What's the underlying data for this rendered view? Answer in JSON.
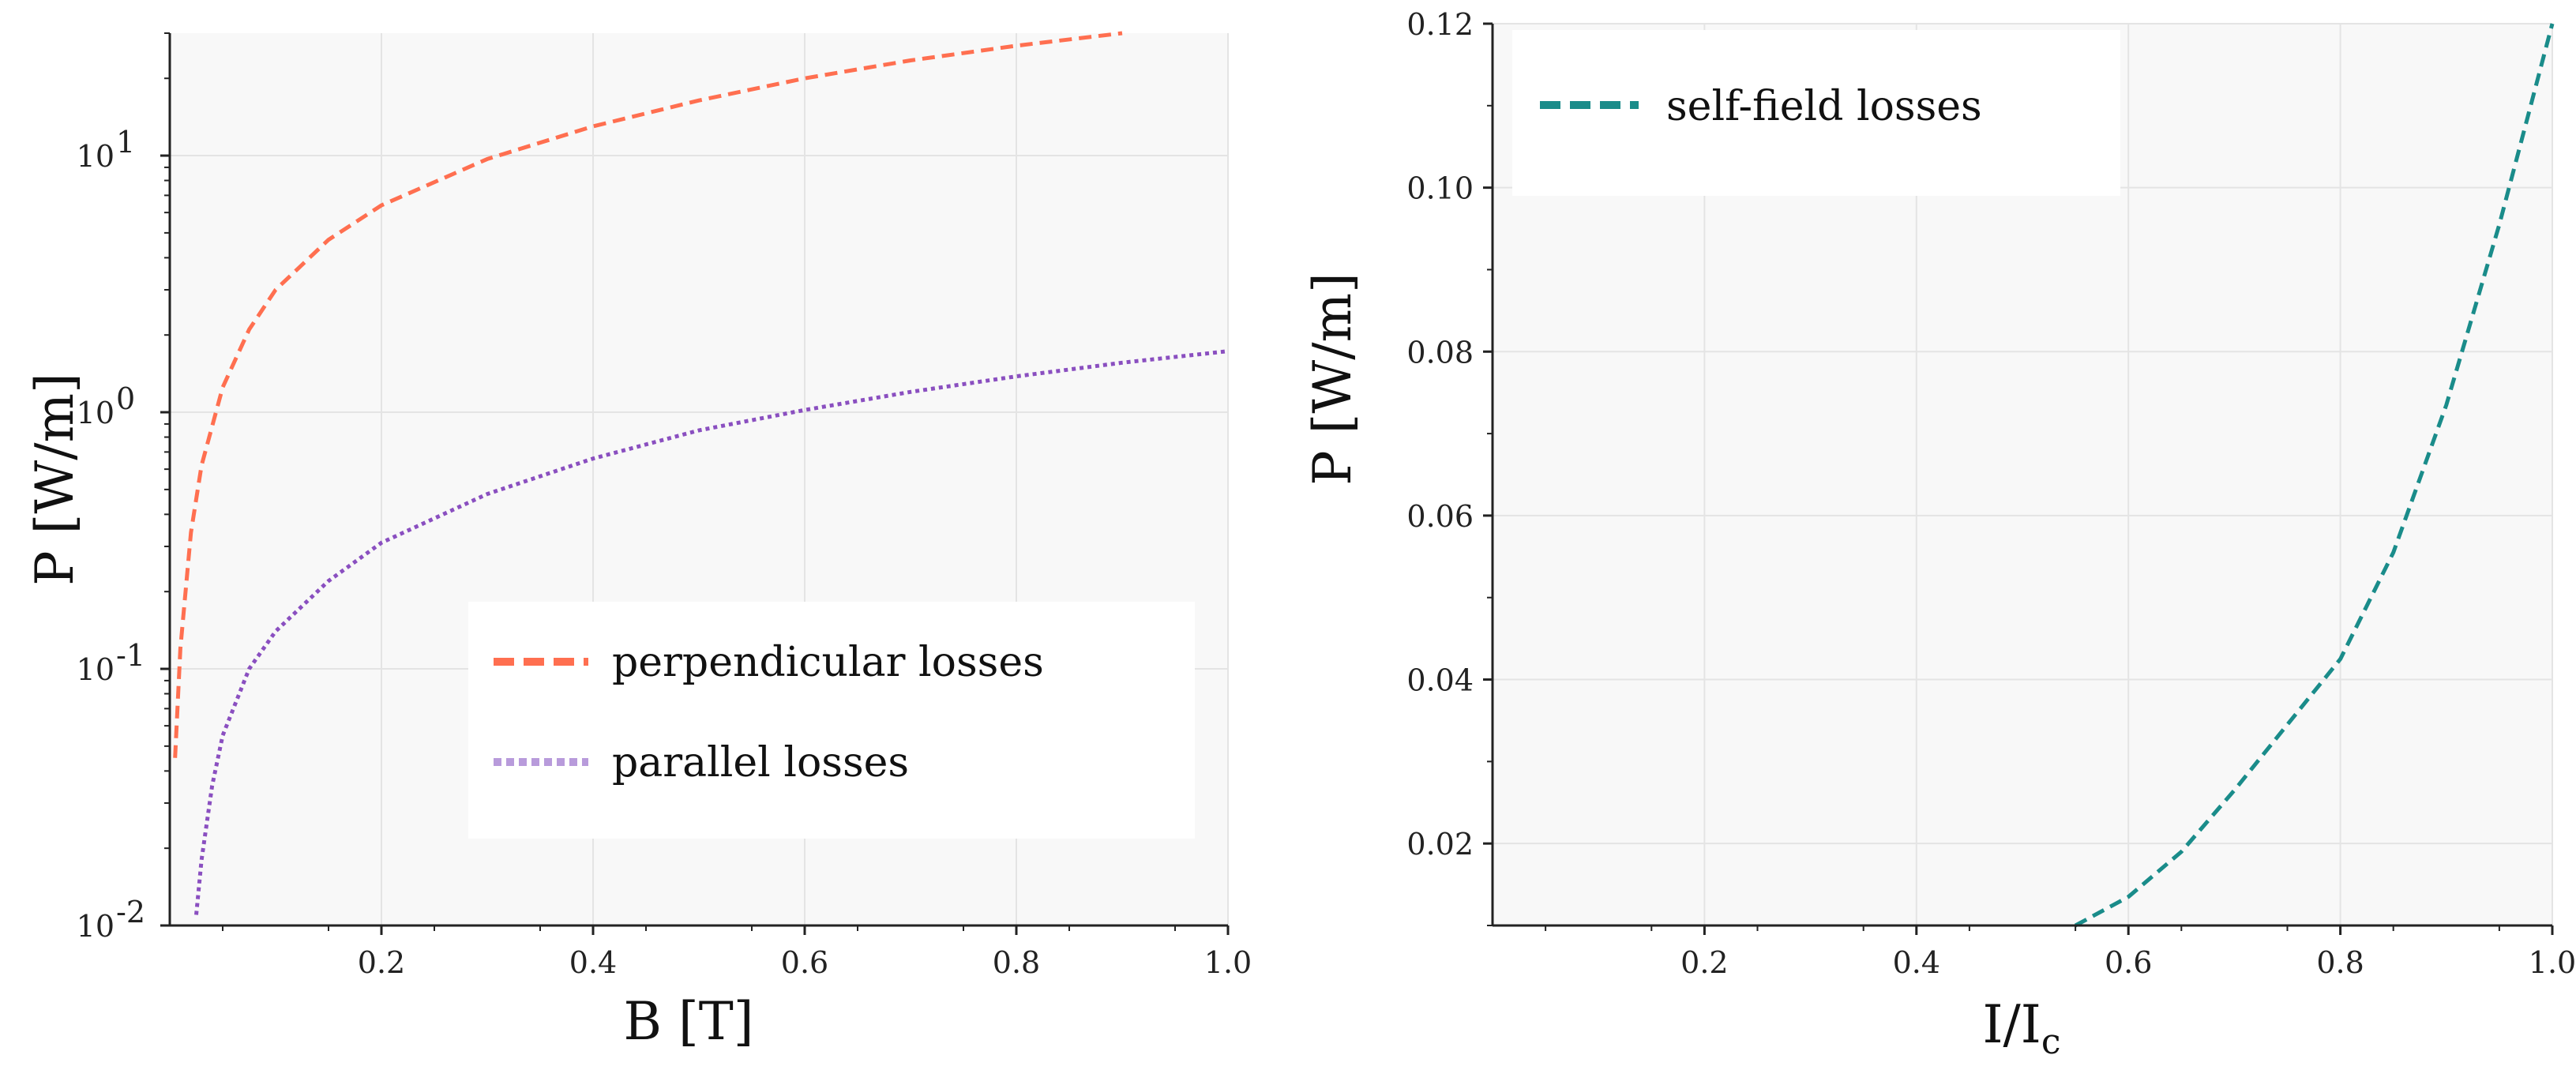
{
  "chart_data": [
    {
      "type": "line",
      "title": "",
      "xlabel": "B [T]",
      "ylabel": "P [W/m]",
      "yscale": "log",
      "xlim": [
        0.0,
        1.0
      ],
      "ylim": [
        0.01,
        30
      ],
      "grid": true,
      "legend_position": "lower-right",
      "x_ticks": [
        {
          "value": 0.2,
          "label": "0.2"
        },
        {
          "value": 0.4,
          "label": "0.4"
        },
        {
          "value": 0.6,
          "label": "0.6"
        },
        {
          "value": 0.8,
          "label": "0.8"
        },
        {
          "value": 1.0,
          "label": "1.0"
        }
      ],
      "y_ticks": [
        {
          "value": 0.01,
          "base": "10",
          "exp": "-2"
        },
        {
          "value": 0.1,
          "base": "10",
          "exp": "-1"
        },
        {
          "value": 1,
          "base": "10",
          "exp": "0"
        },
        {
          "value": 10,
          "base": "10",
          "exp": "1"
        }
      ],
      "series": [
        {
          "name": "perpendicular losses",
          "color": "#FF6F50",
          "style": "dashed",
          "x": [
            0.005,
            0.01,
            0.02,
            0.03,
            0.05,
            0.075,
            0.1,
            0.15,
            0.2,
            0.3,
            0.4,
            0.5,
            0.6,
            0.7,
            0.8,
            0.9
          ],
          "y": [
            0.045,
            0.12,
            0.34,
            0.62,
            1.25,
            2.1,
            3.0,
            4.7,
            6.4,
            9.7,
            13.0,
            16.4,
            20.0,
            23.5,
            26.8,
            30.0
          ]
        },
        {
          "name": "parallel losses",
          "color": "#8A4FC0",
          "legend_color": "#B89BDB",
          "style": "dotted",
          "x": [
            0.025,
            0.03,
            0.04,
            0.05,
            0.075,
            0.1,
            0.15,
            0.2,
            0.3,
            0.4,
            0.5,
            0.6,
            0.7,
            0.8,
            0.9,
            1.0
          ],
          "y": [
            0.011,
            0.018,
            0.035,
            0.055,
            0.1,
            0.14,
            0.22,
            0.31,
            0.48,
            0.66,
            0.85,
            1.02,
            1.2,
            1.38,
            1.56,
            1.73
          ]
        }
      ]
    },
    {
      "type": "line",
      "title": "",
      "xlabel": "I/I",
      "xlabel_sub": "c",
      "ylabel": "P [W/m]",
      "yscale": "linear",
      "xlim": [
        0.0,
        1.0
      ],
      "ylim": [
        0.01,
        0.12
      ],
      "grid": true,
      "legend_position": "top-left",
      "x_ticks": [
        {
          "value": 0.2,
          "label": "0.2"
        },
        {
          "value": 0.4,
          "label": "0.4"
        },
        {
          "value": 0.6,
          "label": "0.6"
        },
        {
          "value": 0.8,
          "label": "0.8"
        },
        {
          "value": 1.0,
          "label": "1.0"
        }
      ],
      "y_ticks": [
        {
          "value": 0.02,
          "label": "0.02"
        },
        {
          "value": 0.04,
          "label": "0.04"
        },
        {
          "value": 0.06,
          "label": "0.06"
        },
        {
          "value": 0.08,
          "label": "0.08"
        },
        {
          "value": 0.1,
          "label": "0.10"
        },
        {
          "value": 0.12,
          "label": "0.12"
        }
      ],
      "series": [
        {
          "name": "self-field losses",
          "color": "#1A8C8A",
          "style": "dashed",
          "x": [
            0.55,
            0.6,
            0.65,
            0.7,
            0.75,
            0.8,
            0.85,
            0.9,
            0.95,
            1.0
          ],
          "y": [
            0.01,
            0.0135,
            0.019,
            0.0265,
            0.0345,
            0.0425,
            0.0555,
            0.0735,
            0.0955,
            0.12
          ]
        }
      ]
    }
  ]
}
